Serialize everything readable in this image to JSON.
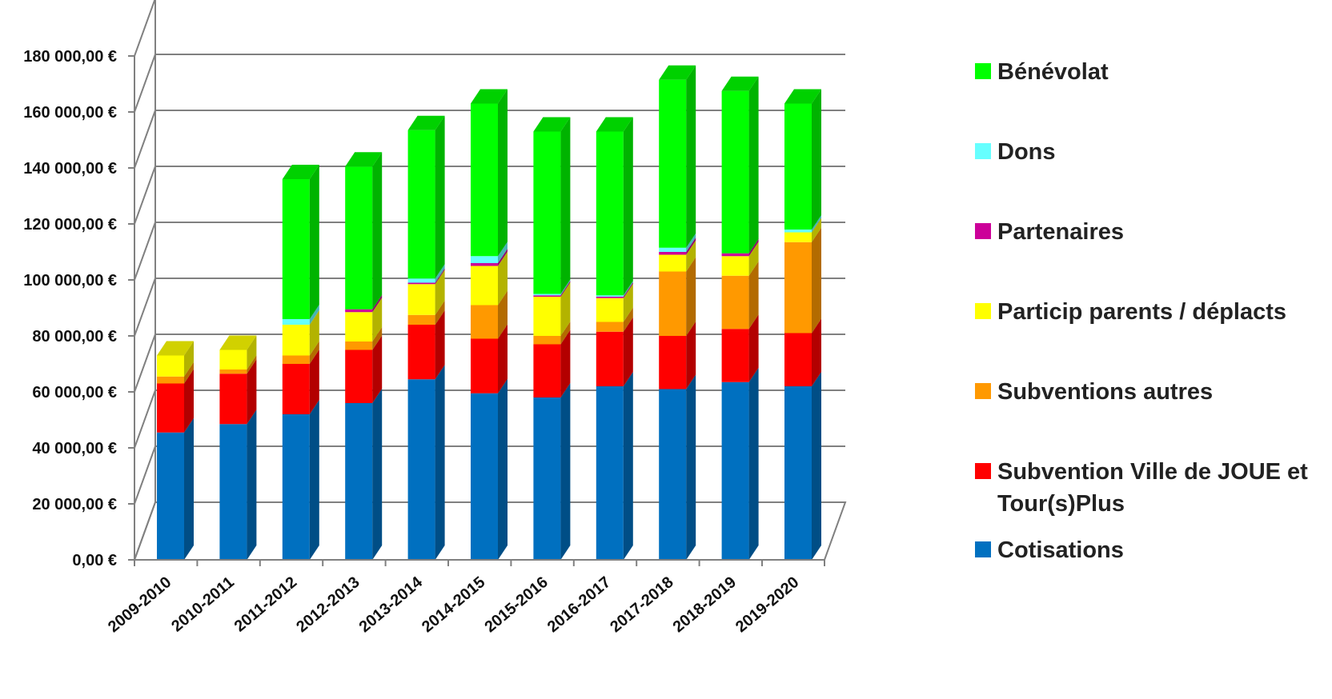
{
  "chart_data": {
    "type": "bar",
    "stacked": true,
    "three_d": true,
    "grid": true,
    "legend_position": "right",
    "categories": [
      "2009-2010",
      "2010-2011",
      "2011-2012",
      "2012-2013",
      "2013-2014",
      "2014-2015",
      "2015-2016",
      "2016-2017",
      "2017-2018",
      "2018-2019",
      "2019-2020"
    ],
    "y_ticks": [
      "0,00 €",
      "20 000,00 €",
      "40 000,00 €",
      "60 000,00 €",
      "80 000,00 €",
      "100 000,00 €",
      "120 000,00 €",
      "140 000,00 €",
      "160 000,00 €",
      "180 000,00 €"
    ],
    "ylim": [
      0,
      180000
    ],
    "series": [
      {
        "name": "Cotisations",
        "color": "#0070C0",
        "values": [
          45500,
          48500,
          52000,
          56000,
          64500,
          59500,
          58000,
          62000,
          61000,
          63500,
          62000
        ]
      },
      {
        "name": "Subvention Ville de JOUE et Tour(s)Plus",
        "color": "#FF0000",
        "values": [
          17500,
          18000,
          18000,
          19000,
          19500,
          19500,
          19000,
          19500,
          19000,
          19000,
          19000
        ]
      },
      {
        "name": "Subventions autres",
        "color": "#FF9900",
        "values": [
          2500,
          1500,
          3000,
          3000,
          3500,
          12000,
          3000,
          3500,
          23000,
          19000,
          32500
        ]
      },
      {
        "name": "Particip parents / déplacts",
        "color": "#FFFF00",
        "values": [
          7500,
          7000,
          11000,
          10500,
          11000,
          14000,
          14000,
          8500,
          6000,
          7000,
          3500
        ]
      },
      {
        "name": "Partenaires",
        "color": "#CC0099",
        "values": [
          0,
          0,
          0,
          1000,
          500,
          1000,
          500,
          500,
          1000,
          1000,
          0
        ]
      },
      {
        "name": "Dons",
        "color": "#66FFFF",
        "values": [
          0,
          0,
          2000,
          0,
          1500,
          2500,
          500,
          500,
          1500,
          0,
          1000
        ]
      },
      {
        "name": "Bénévolat",
        "color": "#00FF00",
        "values": [
          0,
          0,
          50000,
          51000,
          53000,
          54500,
          58000,
          58500,
          60000,
          58000,
          45000
        ]
      }
    ]
  }
}
